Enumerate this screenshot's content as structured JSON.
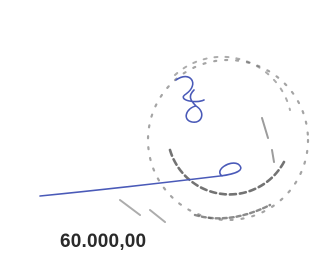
{
  "amount": "60.000,00"
}
